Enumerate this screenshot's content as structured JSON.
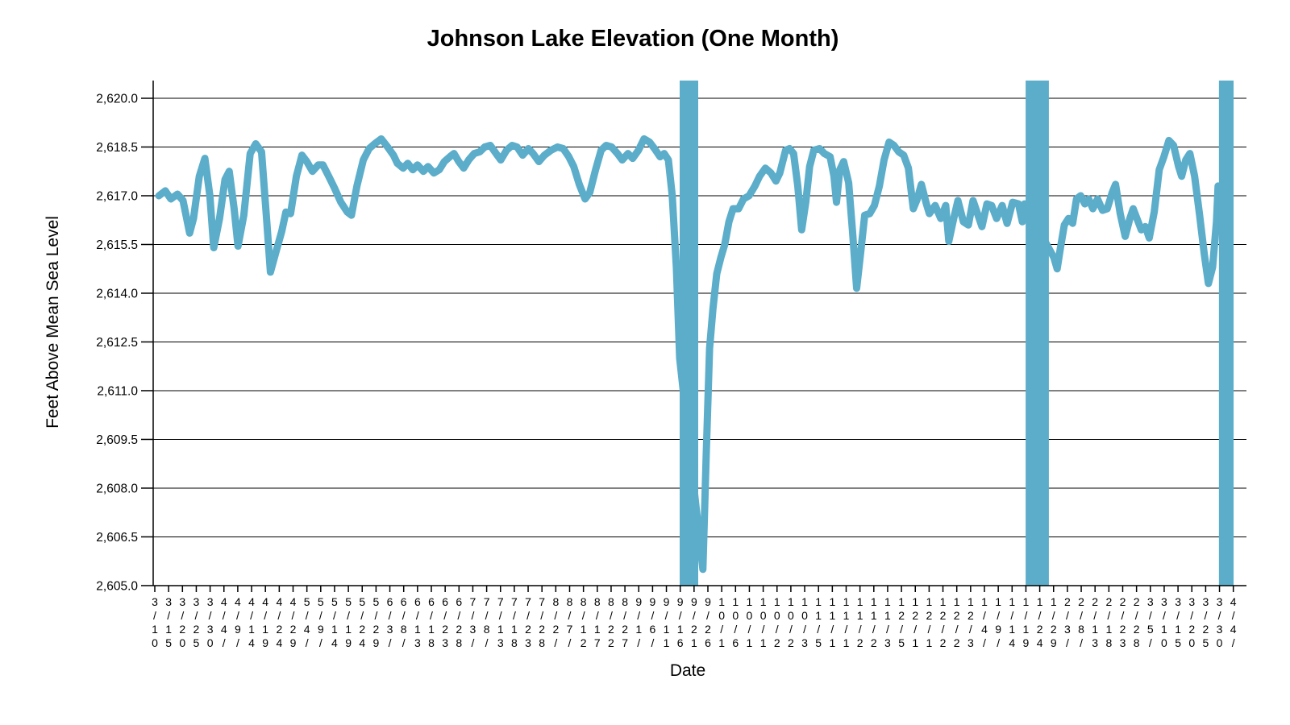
{
  "window": {
    "background_color": "#ffffff"
  },
  "chart_data": {
    "type": "line",
    "title": "Johnson Lake Elevation (One Month)",
    "xlabel": "Date",
    "ylabel": "Feet Above Mean Sea Level",
    "ylim": [
      2605.0,
      2620.0
    ],
    "y_tick_interval": 1.5,
    "y_ticks": [
      {
        "label": "2,620.0",
        "value": 2620.0
      },
      {
        "label": "2,618.5",
        "value": 2618.5
      },
      {
        "label": "2,617.0",
        "value": 2617.0
      },
      {
        "label": "2,615.5",
        "value": 2615.5
      },
      {
        "label": "2,614.0",
        "value": 2614.0
      },
      {
        "label": "2,612.5",
        "value": 2612.5
      },
      {
        "label": "2,611.0",
        "value": 2611.0
      },
      {
        "label": "2,609.5",
        "value": 2609.5
      },
      {
        "label": "2,608.0",
        "value": 2608.0
      },
      {
        "label": "2,606.5",
        "value": 2606.5
      },
      {
        "label": "2,605.0",
        "value": 2605.0
      }
    ],
    "x_tick_interval_days": 5,
    "x_tick_labels": [
      "3/10",
      "3/15",
      "3/20",
      "3/25",
      "3/30",
      "4/4/",
      "4/9/",
      "4/14",
      "4/19",
      "4/24",
      "4/29",
      "5/4/",
      "5/9/",
      "5/14",
      "5/19",
      "5/24",
      "5/29",
      "6/3/",
      "6/8/",
      "6/13",
      "6/18",
      "6/23",
      "6/28",
      "7/3/",
      "7/8/",
      "7/13",
      "7/18",
      "7/23",
      "7/28",
      "8/2/",
      "8/7/",
      "8/12",
      "8/17",
      "8/22",
      "8/27",
      "9/1/",
      "9/6/",
      "9/11",
      "9/16",
      "9/21",
      "9/26",
      "10/1",
      "10/6",
      "10/1",
      "10/1",
      "10/2",
      "10/2",
      "10/3",
      "11/5",
      "11/1",
      "11/1",
      "11/2",
      "11/2",
      "11/3",
      "12/5",
      "12/1",
      "12/1",
      "12/2",
      "12/2",
      "12/3",
      "1/4/",
      "1/9/",
      "1/14",
      "1/19",
      "1/24",
      "1/29",
      "2/3/",
      "2/8/",
      "2/13",
      "2/18",
      "2/23",
      "2/28",
      "3/5/",
      "3/10",
      "3/15",
      "3/20",
      "3/25",
      "3/30",
      "4/4/"
    ],
    "grid": true,
    "legend": "none",
    "line_color": "#5BADCA",
    "grid_color": "#000000",
    "text_color": "#000000",
    "dropout_bars_days": [
      [
        189.8,
        196.5
      ],
      [
        314.9,
        323.3
      ],
      [
        384.8,
        390.1
      ]
    ],
    "series": [
      {
        "name": "Lake elevation (ft above mean sea level)",
        "points": [
          [
            1.5,
            2617.0
          ],
          [
            3.8,
            2617.15
          ],
          [
            5.8,
            2616.9
          ],
          [
            8.2,
            2617.05
          ],
          [
            10.2,
            2616.85
          ],
          [
            12.6,
            2615.85
          ],
          [
            14,
            2616.3
          ],
          [
            16.1,
            2617.6
          ],
          [
            18.1,
            2618.15
          ],
          [
            19.9,
            2617.0
          ],
          [
            21.3,
            2615.4
          ],
          [
            23.4,
            2616.3
          ],
          [
            25.4,
            2617.5
          ],
          [
            26.9,
            2617.75
          ],
          [
            28.7,
            2616.6
          ],
          [
            30.1,
            2615.45
          ],
          [
            32.2,
            2616.4
          ],
          [
            34.5,
            2618.3
          ],
          [
            36.5,
            2618.6
          ],
          [
            38.6,
            2618.35
          ],
          [
            40.4,
            2616.3
          ],
          [
            41.8,
            2614.65
          ],
          [
            43.9,
            2615.3
          ],
          [
            45.9,
            2615.9
          ],
          [
            47.4,
            2616.5
          ],
          [
            49.1,
            2616.45
          ],
          [
            51.2,
            2617.6
          ],
          [
            53.2,
            2618.25
          ],
          [
            55,
            2618.05
          ],
          [
            57,
            2617.75
          ],
          [
            59.1,
            2617.95
          ],
          [
            60.8,
            2617.95
          ],
          [
            62.9,
            2617.6
          ],
          [
            64.9,
            2617.25
          ],
          [
            67.3,
            2616.8
          ],
          [
            69.6,
            2616.5
          ],
          [
            71.1,
            2616.4
          ],
          [
            73.1,
            2617.3
          ],
          [
            75.4,
            2618.1
          ],
          [
            77.5,
            2618.45
          ],
          [
            79.5,
            2618.6
          ],
          [
            81.9,
            2618.75
          ],
          [
            84.2,
            2618.5
          ],
          [
            86.3,
            2618.25
          ],
          [
            87.7,
            2618.0
          ],
          [
            89.8,
            2617.85
          ],
          [
            91.5,
            2618.0
          ],
          [
            93.3,
            2617.8
          ],
          [
            95,
            2617.95
          ],
          [
            97.1,
            2617.75
          ],
          [
            98.8,
            2617.9
          ],
          [
            100.9,
            2617.7
          ],
          [
            102.9,
            2617.8
          ],
          [
            104.7,
            2618.05
          ],
          [
            106.7,
            2618.2
          ],
          [
            108.2,
            2618.3
          ],
          [
            109.9,
            2618.05
          ],
          [
            111.7,
            2617.85
          ],
          [
            113.5,
            2618.1
          ],
          [
            115.5,
            2618.3
          ],
          [
            117.5,
            2618.35
          ],
          [
            119.3,
            2618.5
          ],
          [
            121.3,
            2618.55
          ],
          [
            123.4,
            2618.3
          ],
          [
            125.1,
            2618.1
          ],
          [
            127.2,
            2618.4
          ],
          [
            129.2,
            2618.55
          ],
          [
            131,
            2618.5
          ],
          [
            133,
            2618.25
          ],
          [
            135.1,
            2618.45
          ],
          [
            136.8,
            2618.3
          ],
          [
            138.9,
            2618.05
          ],
          [
            140.9,
            2618.25
          ],
          [
            143.3,
            2618.4
          ],
          [
            145.6,
            2618.5
          ],
          [
            147.7,
            2618.45
          ],
          [
            149.7,
            2618.2
          ],
          [
            151.5,
            2617.9
          ],
          [
            153.5,
            2617.35
          ],
          [
            155.6,
            2616.9
          ],
          [
            157.3,
            2617.1
          ],
          [
            159.4,
            2617.8
          ],
          [
            161.4,
            2618.4
          ],
          [
            163.2,
            2618.55
          ],
          [
            165.2,
            2618.5
          ],
          [
            167.3,
            2618.3
          ],
          [
            169,
            2618.1
          ],
          [
            171.1,
            2618.3
          ],
          [
            172.8,
            2618.15
          ],
          [
            174.9,
            2618.4
          ],
          [
            176.9,
            2618.75
          ],
          [
            178.9,
            2618.65
          ],
          [
            180.7,
            2618.45
          ],
          [
            182.7,
            2618.2
          ],
          [
            184.2,
            2618.3
          ],
          [
            185.7,
            2618.1
          ],
          [
            187.1,
            2617.0
          ],
          [
            188.6,
            2614.8
          ],
          [
            189.8,
            2612.0
          ],
          [
            198.2,
            2605.5
          ],
          [
            199.4,
            2609.0
          ],
          [
            200.6,
            2612.3
          ],
          [
            201.8,
            2613.5
          ],
          [
            203.2,
            2614.6
          ],
          [
            204.7,
            2615.1
          ],
          [
            206.1,
            2615.5
          ],
          [
            207.6,
            2616.2
          ],
          [
            209.1,
            2616.6
          ],
          [
            211.1,
            2616.6
          ],
          [
            212.9,
            2616.9
          ],
          [
            214.9,
            2617.0
          ],
          [
            217,
            2617.3
          ],
          [
            218.7,
            2617.6
          ],
          [
            220.8,
            2617.85
          ],
          [
            222.8,
            2617.7
          ],
          [
            224.6,
            2617.45
          ],
          [
            226,
            2617.7
          ],
          [
            228.1,
            2618.4
          ],
          [
            229.5,
            2618.45
          ],
          [
            231,
            2618.3
          ],
          [
            232.5,
            2617.3
          ],
          [
            233.9,
            2615.95
          ],
          [
            235.4,
            2616.8
          ],
          [
            236.8,
            2617.9
          ],
          [
            238.3,
            2618.4
          ],
          [
            240.4,
            2618.45
          ],
          [
            242.1,
            2618.3
          ],
          [
            244.2,
            2618.2
          ],
          [
            245.6,
            2617.6
          ],
          [
            246.5,
            2616.8
          ],
          [
            247.7,
            2617.8
          ],
          [
            249.1,
            2618.05
          ],
          [
            250.9,
            2617.4
          ],
          [
            252.3,
            2615.9
          ],
          [
            253.8,
            2614.15
          ],
          [
            255.3,
            2615.3
          ],
          [
            256.7,
            2616.4
          ],
          [
            258.5,
            2616.45
          ],
          [
            260.2,
            2616.7
          ],
          [
            262,
            2617.3
          ],
          [
            263.7,
            2618.1
          ],
          [
            265.5,
            2618.65
          ],
          [
            267.3,
            2618.55
          ],
          [
            269,
            2618.35
          ],
          [
            270.8,
            2618.25
          ],
          [
            272.5,
            2617.85
          ],
          [
            274.3,
            2616.6
          ],
          [
            275.7,
            2616.9
          ],
          [
            277.2,
            2617.35
          ],
          [
            279,
            2616.75
          ],
          [
            280.1,
            2616.45
          ],
          [
            282.2,
            2616.7
          ],
          [
            284.2,
            2616.3
          ],
          [
            286,
            2616.7
          ],
          [
            287.1,
            2615.6
          ],
          [
            288.9,
            2616.3
          ],
          [
            290.4,
            2616.85
          ],
          [
            292.4,
            2616.2
          ],
          [
            294.2,
            2616.1
          ],
          [
            295.9,
            2616.85
          ],
          [
            297.7,
            2616.4
          ],
          [
            299.1,
            2616.05
          ],
          [
            300.9,
            2616.75
          ],
          [
            302.6,
            2616.7
          ],
          [
            304.4,
            2616.3
          ],
          [
            306.4,
            2616.7
          ],
          [
            308.2,
            2616.15
          ],
          [
            310.2,
            2616.8
          ],
          [
            312.3,
            2616.75
          ],
          [
            313.7,
            2616.2
          ],
          [
            314.5,
            2616.75
          ],
          [
            325.1,
            2615.1
          ],
          [
            326.3,
            2614.75
          ],
          [
            327.5,
            2615.4
          ],
          [
            328.9,
            2616.1
          ],
          [
            330.4,
            2616.3
          ],
          [
            331.9,
            2616.15
          ],
          [
            333.3,
            2616.9
          ],
          [
            334.8,
            2617.0
          ],
          [
            336.3,
            2616.75
          ],
          [
            337.7,
            2616.9
          ],
          [
            339.2,
            2616.6
          ],
          [
            340.9,
            2616.9
          ],
          [
            342.7,
            2616.55
          ],
          [
            344.4,
            2616.6
          ],
          [
            346.2,
            2617.1
          ],
          [
            347.4,
            2617.35
          ],
          [
            349.1,
            2616.45
          ],
          [
            350.9,
            2615.75
          ],
          [
            352.6,
            2616.3
          ],
          [
            353.8,
            2616.6
          ],
          [
            355.6,
            2616.2
          ],
          [
            356.7,
            2615.95
          ],
          [
            358.2,
            2616.05
          ],
          [
            359.6,
            2615.7
          ],
          [
            361.4,
            2616.5
          ],
          [
            363.2,
            2617.8
          ],
          [
            364.9,
            2618.2
          ],
          [
            366.7,
            2618.7
          ],
          [
            368.4,
            2618.55
          ],
          [
            370.2,
            2617.9
          ],
          [
            371.3,
            2617.6
          ],
          [
            372.8,
            2618.1
          ],
          [
            374.3,
            2618.3
          ],
          [
            376,
            2617.6
          ],
          [
            377.8,
            2616.4
          ],
          [
            379.5,
            2615.2
          ],
          [
            381,
            2614.3
          ],
          [
            382.5,
            2614.8
          ],
          [
            383.9,
            2616.2
          ],
          [
            384.5,
            2617.3
          ]
        ]
      }
    ]
  }
}
